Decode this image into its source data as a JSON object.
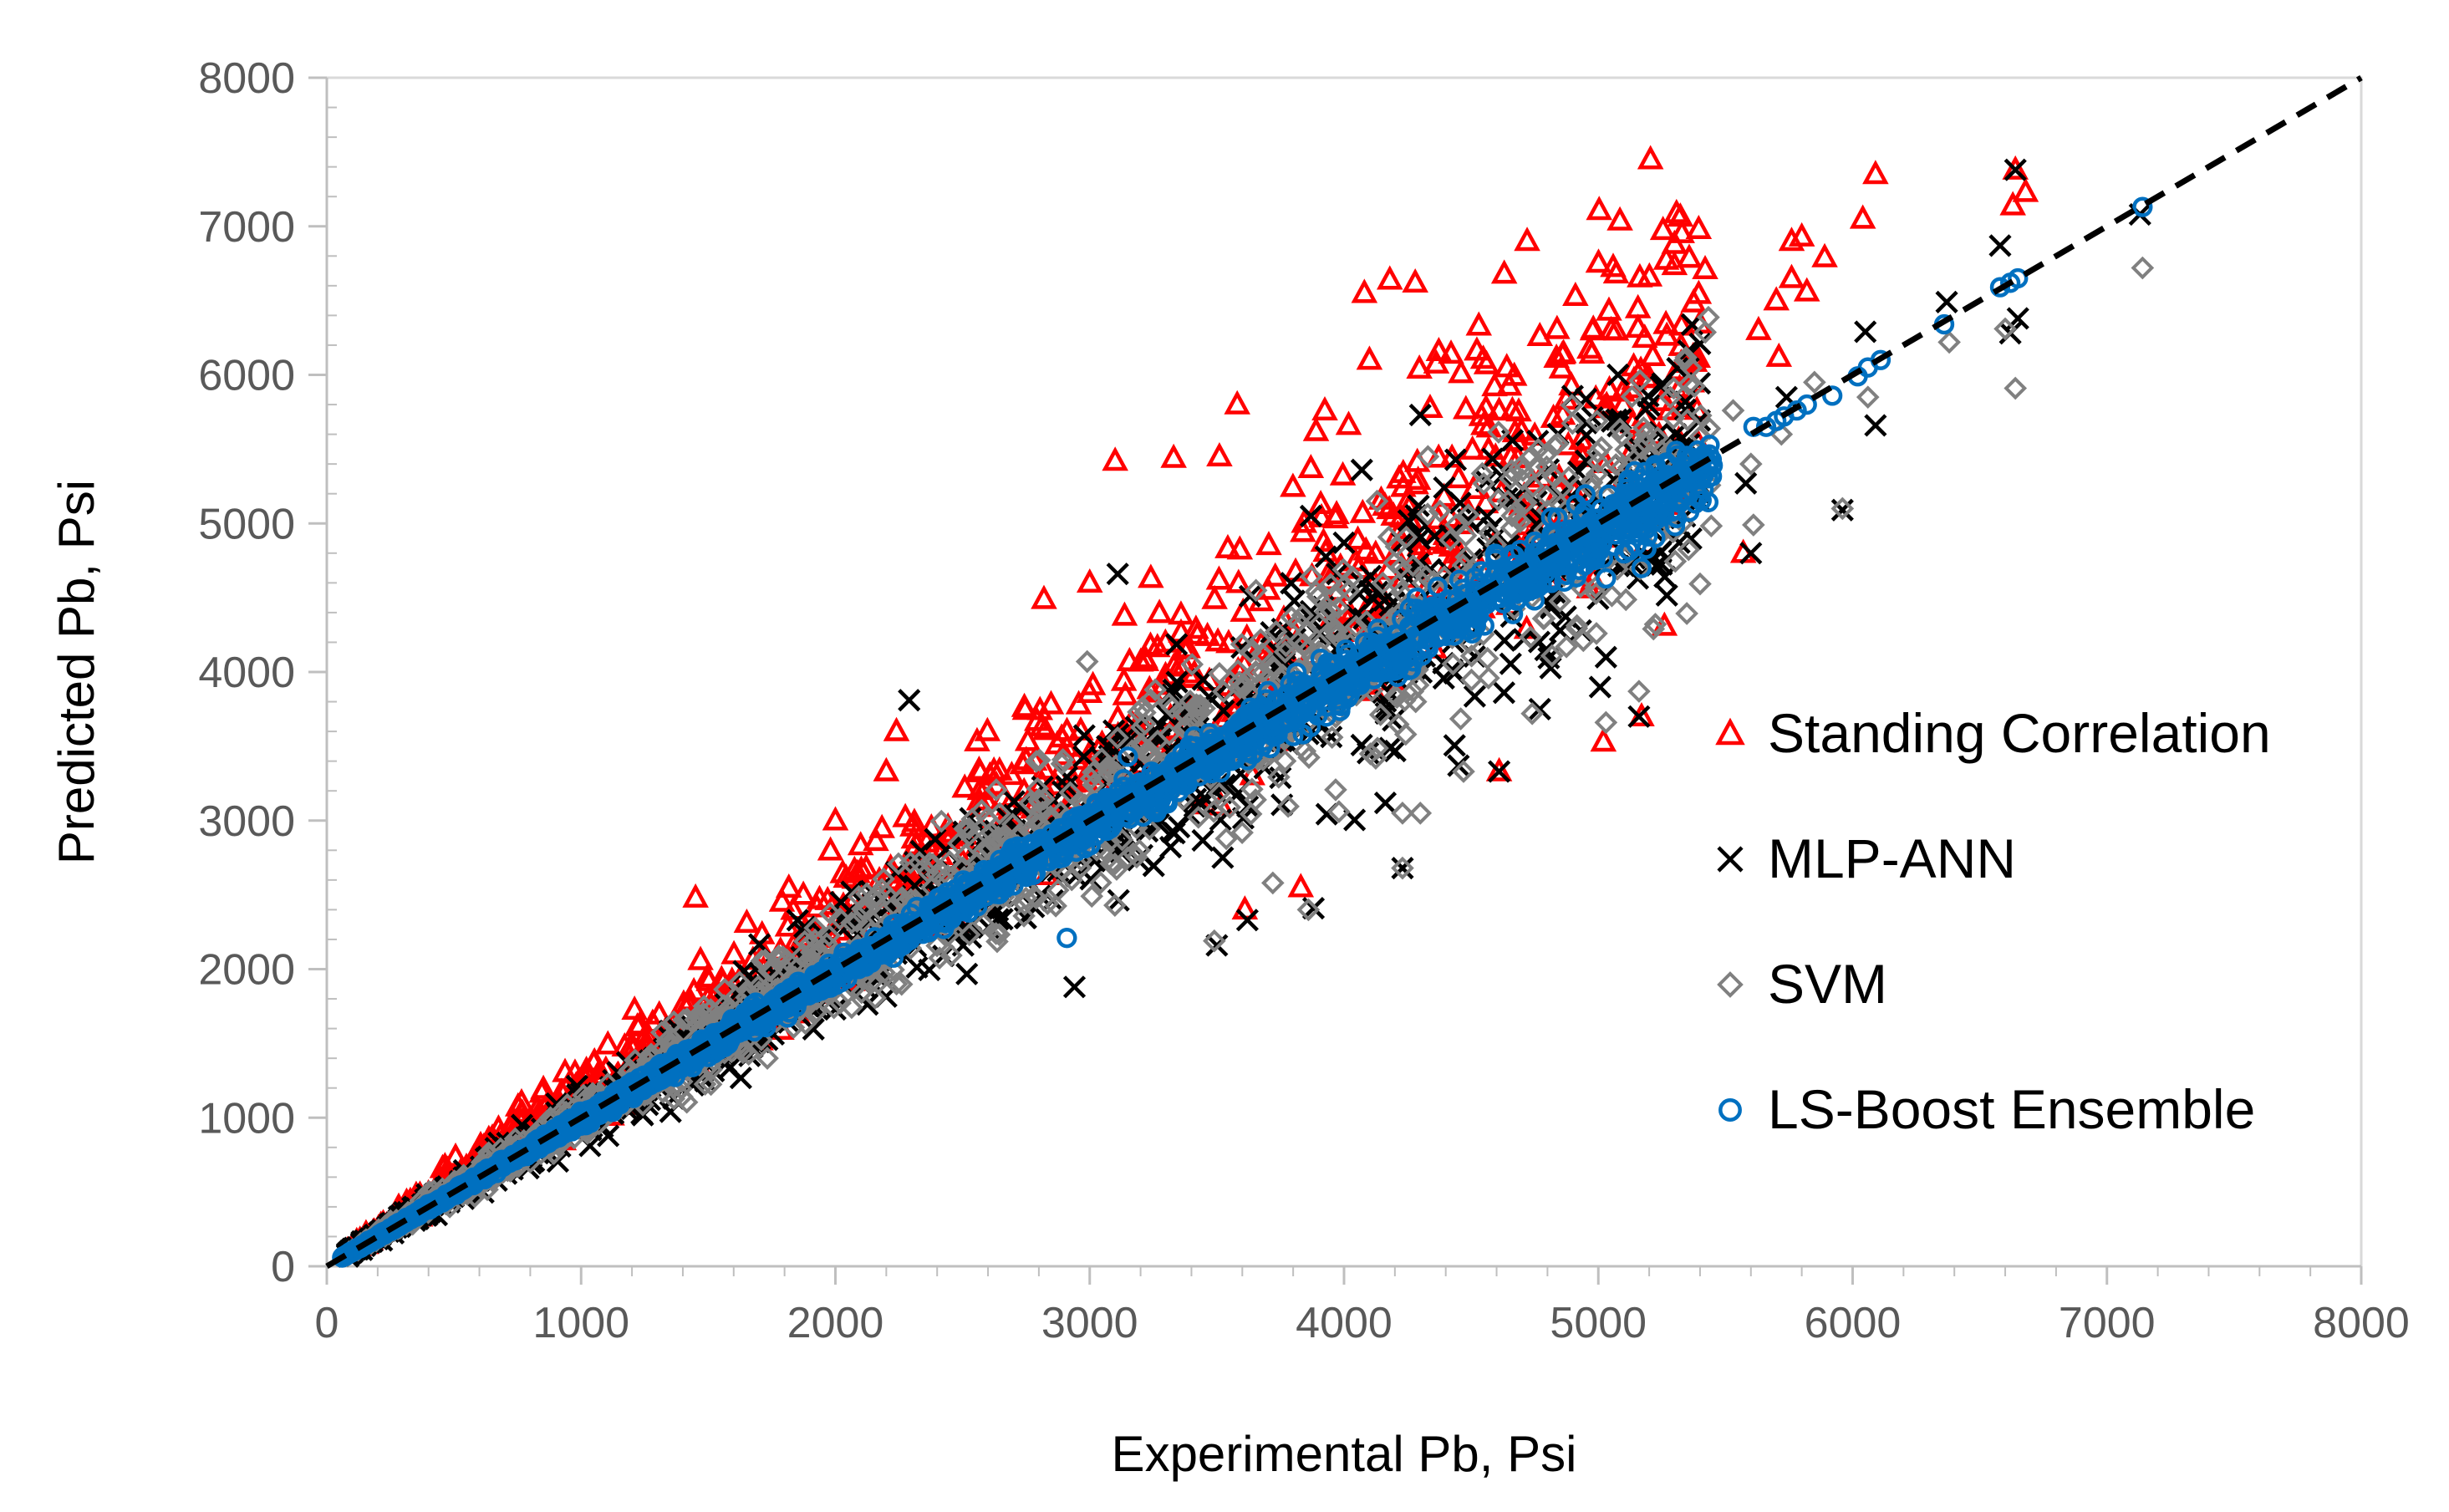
{
  "chart_data": {
    "type": "scatter",
    "title": "",
    "xlabel": "Experimental Pb, Psi",
    "ylabel": "Predicted Pb, Psi",
    "xlim": [
      0,
      8000
    ],
    "ylim": [
      0,
      8000
    ],
    "xticks": [
      "0",
      "1000",
      "2000",
      "3000",
      "4000",
      "5000",
      "6000",
      "7000",
      "8000"
    ],
    "yticks": [
      "0",
      "1000",
      "2000",
      "3000",
      "4000",
      "5000",
      "6000",
      "7000",
      "8000"
    ],
    "grid": false,
    "legend_position": "right",
    "reference_line": {
      "style": "dashed",
      "color": "#000000",
      "from": [
        0,
        0
      ],
      "to": [
        8000,
        8000
      ]
    },
    "series": [
      {
        "name": "Standing Correlation",
        "marker": "triangle",
        "color": "#ff0000",
        "cloud": {
          "x_range": [
            80,
            5400
          ],
          "ratio_low": 0.82,
          "ratio_high": 1.5,
          "n": 900
        },
        "points": [
          [
            2240,
            3600
          ],
          [
            3100,
            5420
          ],
          [
            3580,
            5800
          ],
          [
            3890,
            5620
          ],
          [
            4080,
            6550
          ],
          [
            4180,
            6640
          ],
          [
            4280,
            6620
          ],
          [
            4100,
            6100
          ],
          [
            4530,
            6330
          ],
          [
            4630,
            6680
          ],
          [
            4720,
            6900
          ],
          [
            4460,
            6010
          ],
          [
            4640,
            6050
          ],
          [
            4770,
            6260
          ],
          [
            4910,
            6530
          ],
          [
            5050,
            6300
          ],
          [
            5180,
            5720
          ],
          [
            5310,
            6030
          ],
          [
            5420,
            6710
          ],
          [
            5630,
            6300
          ],
          [
            5700,
            6500
          ],
          [
            5760,
            6900
          ],
          [
            5800,
            6930
          ],
          [
            5890,
            6790
          ],
          [
            6040,
            7050
          ],
          [
            6090,
            7350
          ],
          [
            6680,
            7230
          ],
          [
            6640,
            7380
          ],
          [
            6630,
            7140
          ],
          [
            5710,
            6120
          ],
          [
            5760,
            6650
          ],
          [
            5820,
            6560
          ],
          [
            5020,
            3530
          ],
          [
            5260,
            4310
          ],
          [
            4610,
            3330
          ],
          [
            3610,
            2400
          ],
          [
            2200,
            3330
          ],
          [
            2000,
            3000
          ],
          [
            3830,
            2550
          ],
          [
            5570,
            4800
          ],
          [
            5170,
            3700
          ],
          [
            4980,
            4620
          ],
          [
            3000,
            4600
          ],
          [
            2820,
            4490
          ],
          [
            1450,
            2480
          ],
          [
            4750,
            5590
          ],
          [
            4860,
            5730
          ],
          [
            4990,
            5840
          ],
          [
            3510,
            5450
          ],
          [
            3330,
            5440
          ]
        ]
      },
      {
        "name": "MLP-ANN",
        "marker": "x",
        "color": "#000000",
        "cloud": {
          "x_range": [
            80,
            5400
          ],
          "ratio_low": 0.72,
          "ratio_high": 1.3,
          "n": 1000
        },
        "points": [
          [
            6640,
            7380
          ],
          [
            6580,
            6870
          ],
          [
            6620,
            6280
          ],
          [
            6650,
            6380
          ],
          [
            6370,
            6490
          ],
          [
            6050,
            6290
          ],
          [
            6090,
            5660
          ],
          [
            5740,
            5850
          ],
          [
            5960,
            5090
          ],
          [
            5580,
            5270
          ],
          [
            4300,
            5730
          ],
          [
            4070,
            5360
          ],
          [
            3870,
            5050
          ],
          [
            4230,
            2680
          ],
          [
            4450,
            3370
          ],
          [
            4610,
            3330
          ],
          [
            5160,
            3700
          ],
          [
            5600,
            4800
          ],
          [
            3500,
            2160
          ],
          [
            2940,
            1880
          ],
          [
            3620,
            2330
          ],
          [
            3880,
            2410
          ],
          [
            7130,
            7080
          ],
          [
            4930,
            5000
          ],
          [
            5030,
            4100
          ],
          [
            4770,
            3750
          ],
          [
            3110,
            4660
          ],
          [
            3630,
            4510
          ],
          [
            4000,
            4870
          ],
          [
            2290,
            3810
          ]
        ]
      },
      {
        "name": "SVM",
        "marker": "diamond",
        "color": "#808080",
        "cloud": {
          "x_range": [
            80,
            5450
          ],
          "ratio_low": 0.75,
          "ratio_high": 1.28,
          "n": 1300
        },
        "points": [
          [
            7140,
            6720
          ],
          [
            6640,
            5910
          ],
          [
            6600,
            6310
          ],
          [
            6380,
            6220
          ],
          [
            6060,
            5850
          ],
          [
            5960,
            5100
          ],
          [
            5610,
            4990
          ],
          [
            5600,
            5400
          ],
          [
            5720,
            5600
          ],
          [
            5530,
            5760
          ],
          [
            5160,
            3870
          ],
          [
            5030,
            3660
          ],
          [
            4990,
            4570
          ],
          [
            4900,
            4830
          ],
          [
            4740,
            3720
          ],
          [
            4470,
            3330
          ],
          [
            4300,
            3050
          ],
          [
            4230,
            2680
          ],
          [
            3980,
            3060
          ],
          [
            3720,
            2580
          ],
          [
            3490,
            2190
          ],
          [
            3860,
            2400
          ],
          [
            4230,
            3050
          ],
          [
            4310,
            4600
          ],
          [
            4130,
            5150
          ],
          [
            4330,
            5450
          ],
          [
            3510,
            3990
          ],
          [
            2990,
            4070
          ],
          [
            5410,
            5370
          ],
          [
            5850,
            5950
          ]
        ]
      },
      {
        "name": "LS-Boost Ensemble",
        "marker": "circle",
        "color": "#0070c0",
        "cloud": {
          "x_range": [
            60,
            5450
          ],
          "ratio_low": 0.92,
          "ratio_high": 1.06,
          "n": 2400
        },
        "points": [
          [
            7140,
            7130
          ],
          [
            6650,
            6650
          ],
          [
            6620,
            6620
          ],
          [
            6580,
            6590
          ],
          [
            6360,
            6340
          ],
          [
            6110,
            6100
          ],
          [
            6060,
            6050
          ],
          [
            6020,
            5990
          ],
          [
            5920,
            5860
          ],
          [
            5820,
            5800
          ],
          [
            5780,
            5760
          ],
          [
            5730,
            5720
          ],
          [
            5700,
            5690
          ],
          [
            5660,
            5650
          ],
          [
            5610,
            5650
          ],
          [
            5450,
            5390
          ],
          [
            5360,
            5340
          ],
          [
            5310,
            5320
          ],
          [
            5240,
            5280
          ],
          [
            5200,
            5220
          ],
          [
            5170,
            5160
          ],
          [
            5110,
            5120
          ],
          [
            5040,
            5040
          ],
          [
            5000,
            4980
          ],
          [
            4940,
            4930
          ],
          [
            5120,
            4820
          ],
          [
            5170,
            4700
          ],
          [
            5030,
            4630
          ],
          [
            5240,
            5100
          ],
          [
            4880,
            4880
          ],
          [
            4800,
            4800
          ],
          [
            4720,
            4700
          ],
          [
            4610,
            4600
          ],
          [
            4560,
            4550
          ],
          [
            2910,
            2210
          ],
          [
            3150,
            3430
          ]
        ]
      }
    ]
  }
}
